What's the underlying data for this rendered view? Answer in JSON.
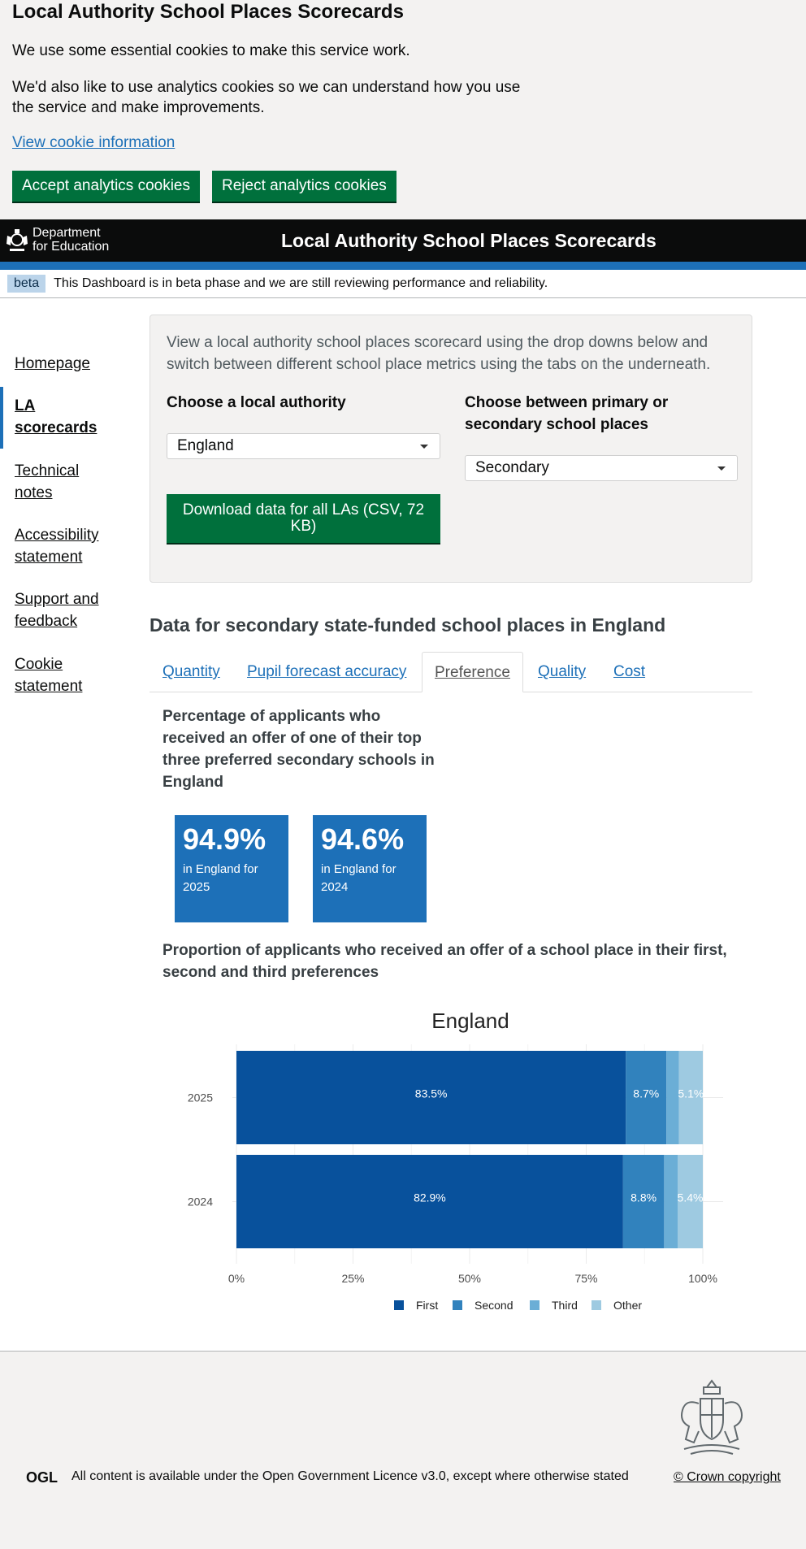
{
  "cookie_banner": {
    "title": "Local Authority School Places Scorecards",
    "essential_text": "We use some essential cookies to make this service work.",
    "analytics_text": "We'd also like to use analytics cookies so we can understand how you use the service and make improvements.",
    "link_label": "View cookie information",
    "accept_label": "Accept analytics cookies",
    "reject_label": "Reject analytics cookies"
  },
  "header": {
    "logo_line1": "Department",
    "logo_line2": "for Education",
    "title": "Local Authority School Places Scorecards"
  },
  "beta": {
    "tag": "beta",
    "message": "This Dashboard is in beta phase and we are still reviewing performance and reliability."
  },
  "sidebar": {
    "items": [
      {
        "label": "Homepage"
      },
      {
        "label": "LA scorecards"
      },
      {
        "label": "Technical notes"
      },
      {
        "label": "Accessibility statement"
      },
      {
        "label": "Support and feedback"
      },
      {
        "label": "Cookie statement"
      }
    ]
  },
  "panel": {
    "intro": "View a local authority school places scorecard using the drop downs below and switch between different school place metrics using the tabs on the underneath.",
    "la_label": "Choose a local authority",
    "la_value": "England",
    "phase_label": "Choose between primary or secondary school places",
    "phase_value": "Secondary",
    "download_label": "Download data for all LAs (CSV, 72 KB)"
  },
  "data_heading": "Data for secondary state-funded school places in England",
  "tabs": [
    {
      "label": "Quantity"
    },
    {
      "label": "Pupil forecast accuracy"
    },
    {
      "label": "Preference"
    },
    {
      "label": "Quality"
    },
    {
      "label": "Cost"
    }
  ],
  "preference": {
    "title": "Percentage of applicants who received an offer of one of their top three preferred secondary schools in England",
    "stats": [
      {
        "value": "94.9%",
        "caption": "in England for 2025"
      },
      {
        "value": "94.6%",
        "caption": "in England for 2024"
      }
    ],
    "proportion_title": "Proportion of applicants who received an offer of a school place in their first, second and third preferences"
  },
  "chart_data": {
    "type": "bar",
    "orientation": "horizontal",
    "stacked": true,
    "title": "England",
    "categories": [
      "2025",
      "2024"
    ],
    "series": [
      {
        "name": "First",
        "values": [
          83.5,
          82.9
        ],
        "color": "#08519c"
      },
      {
        "name": "Second",
        "values": [
          8.7,
          8.8
        ],
        "color": "#3182bd"
      },
      {
        "name": "Third",
        "values": [
          2.7,
          2.9
        ],
        "color": "#6baed6"
      },
      {
        "name": "Other",
        "values": [
          5.1,
          5.4
        ],
        "color": "#9ecae1"
      }
    ],
    "data_labels": [
      [
        "83.5%",
        "8.7%",
        "",
        "5.1%"
      ],
      [
        "82.9%",
        "8.8%",
        "",
        "5.4%"
      ]
    ],
    "x_ticks": [
      "0%",
      "25%",
      "50%",
      "75%",
      "100%"
    ],
    "xlim": [
      0,
      100
    ],
    "legend_position": "bottom",
    "grid": true
  },
  "footer": {
    "licence_prefix": "All content is available under the",
    "licence_link": "Open Government Licence v3.0",
    "licence_suffix": ", except where otherwise stated",
    "ogl_logo": "OGL",
    "crown_copyright": "© Crown copyright"
  }
}
